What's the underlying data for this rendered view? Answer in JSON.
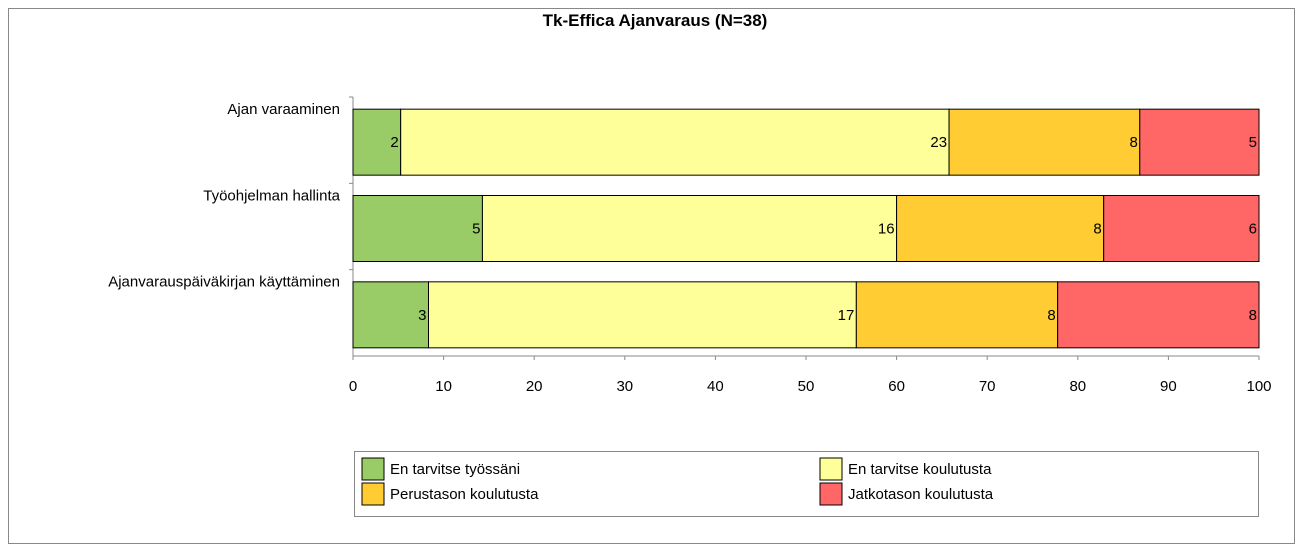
{
  "chart_data": {
    "type": "bar",
    "orientation": "horizontal",
    "stack": "percent",
    "title": "Tk-Effica Ajanvaraus (N=38)",
    "categories": [
      "Ajan varaaminen",
      "Työohjelman hallinta",
      "Ajanvarauspäiväkirjan käyttäminen"
    ],
    "series": [
      {
        "name": "En tarvitse työssäni",
        "color": "#99cc66",
        "values": [
          2,
          5,
          3
        ]
      },
      {
        "name": "En tarvitse koulutusta",
        "color": "#ffff99",
        "values": [
          23,
          16,
          17
        ]
      },
      {
        "name": "Perustason koulutusta",
        "color": "#ffcc33",
        "values": [
          8,
          8,
          8
        ]
      },
      {
        "name": "Jatkotason koulutusta",
        "color": "#ff6666",
        "values": [
          5,
          6,
          8
        ]
      }
    ],
    "xlim": [
      0,
      100
    ],
    "xticks": [
      0,
      10,
      20,
      30,
      40,
      50,
      60,
      70,
      80,
      90,
      100
    ],
    "legend": "bottom"
  }
}
